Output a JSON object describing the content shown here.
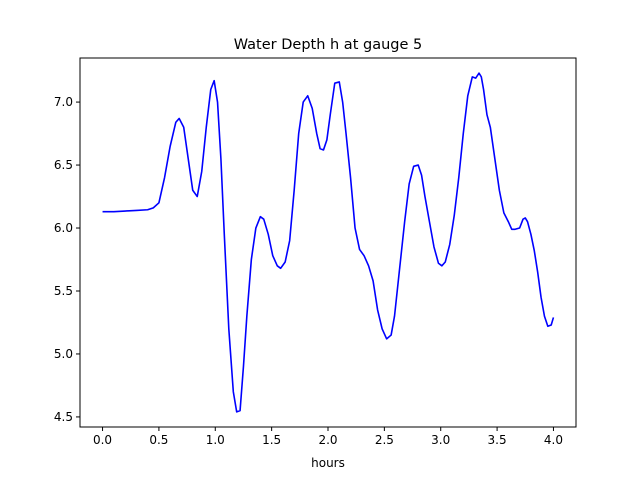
{
  "chart_data": {
    "type": "line",
    "title": "Water Depth h at gauge 5",
    "xlabel": "hours",
    "ylabel": "",
    "xlim": [
      -0.2,
      4.2
    ],
    "ylim": [
      4.42,
      7.35
    ],
    "xticks": [
      0.0,
      0.5,
      1.0,
      1.5,
      2.0,
      2.5,
      3.0,
      3.5,
      4.0
    ],
    "xtick_labels": [
      "0.0",
      "0.5",
      "1.0",
      "1.5",
      "2.0",
      "2.5",
      "3.0",
      "3.5",
      "4.0"
    ],
    "yticks": [
      4.5,
      5.0,
      5.5,
      6.0,
      6.5,
      7.0
    ],
    "ytick_labels": [
      "4.5",
      "5.0",
      "5.5",
      "6.0",
      "6.5",
      "7.0"
    ],
    "grid": false,
    "series": [
      {
        "color": "#0000ff",
        "x": [
          0.0,
          0.1,
          0.2,
          0.3,
          0.4,
          0.45,
          0.5,
          0.55,
          0.6,
          0.65,
          0.68,
          0.72,
          0.76,
          0.8,
          0.84,
          0.88,
          0.92,
          0.96,
          0.99,
          1.02,
          1.05,
          1.08,
          1.12,
          1.16,
          1.19,
          1.22,
          1.25,
          1.28,
          1.32,
          1.36,
          1.4,
          1.43,
          1.47,
          1.51,
          1.55,
          1.58,
          1.62,
          1.66,
          1.7,
          1.74,
          1.78,
          1.82,
          1.86,
          1.9,
          1.93,
          1.96,
          1.99,
          2.02,
          2.06,
          2.1,
          2.13,
          2.16,
          2.2,
          2.24,
          2.28,
          2.32,
          2.36,
          2.4,
          2.44,
          2.48,
          2.52,
          2.56,
          2.59,
          2.62,
          2.65,
          2.68,
          2.72,
          2.76,
          2.8,
          2.83,
          2.86,
          2.9,
          2.94,
          2.98,
          3.01,
          3.04,
          3.08,
          3.12,
          3.16,
          3.2,
          3.24,
          3.28,
          3.31,
          3.34,
          3.36,
          3.38,
          3.41,
          3.44,
          3.48,
          3.52,
          3.56,
          3.6,
          3.63,
          3.66,
          3.7,
          3.73,
          3.75,
          3.77,
          3.8,
          3.83,
          3.86,
          3.89,
          3.92,
          3.95,
          3.98,
          4.0
        ],
        "y": [
          6.13,
          6.13,
          6.135,
          6.14,
          6.145,
          6.16,
          6.2,
          6.4,
          6.65,
          6.84,
          6.87,
          6.8,
          6.55,
          6.3,
          6.25,
          6.45,
          6.8,
          7.1,
          7.17,
          7.0,
          6.55,
          5.95,
          5.2,
          4.7,
          4.54,
          4.55,
          4.9,
          5.3,
          5.75,
          6.0,
          6.09,
          6.07,
          5.95,
          5.78,
          5.7,
          5.68,
          5.73,
          5.9,
          6.3,
          6.75,
          7.0,
          7.05,
          6.95,
          6.75,
          6.63,
          6.62,
          6.7,
          6.9,
          7.15,
          7.16,
          7.0,
          6.75,
          6.4,
          6.0,
          5.83,
          5.78,
          5.7,
          5.58,
          5.35,
          5.2,
          5.12,
          5.15,
          5.3,
          5.55,
          5.8,
          6.05,
          6.35,
          6.49,
          6.5,
          6.42,
          6.25,
          6.05,
          5.85,
          5.72,
          5.7,
          5.73,
          5.87,
          6.1,
          6.4,
          6.75,
          7.05,
          7.2,
          7.19,
          7.23,
          7.2,
          7.1,
          6.9,
          6.8,
          6.55,
          6.3,
          6.12,
          6.05,
          5.99,
          5.99,
          6.0,
          6.07,
          6.08,
          6.05,
          5.95,
          5.82,
          5.65,
          5.45,
          5.3,
          5.22,
          5.23,
          5.29
        ]
      }
    ]
  }
}
